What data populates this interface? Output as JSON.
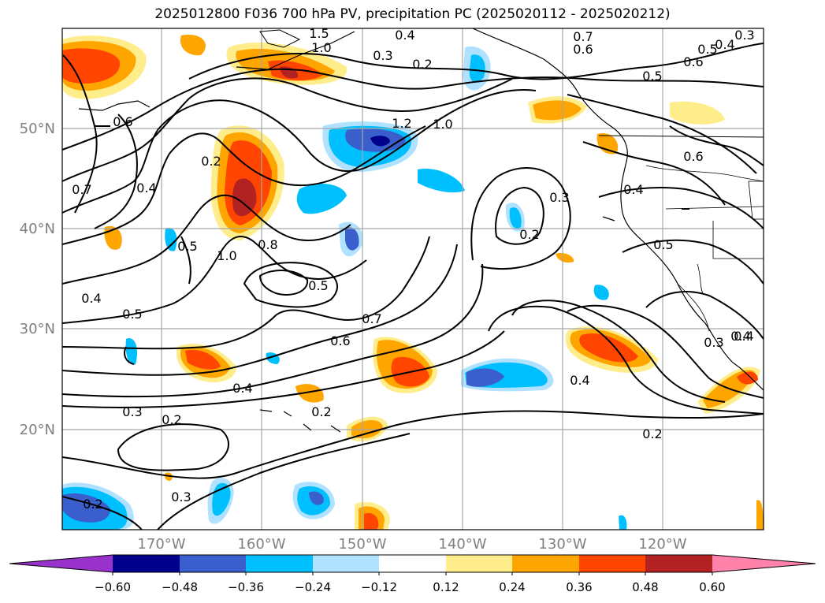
{
  "title": "2025012800 F036 700 hPa PV, precipitation PC (2025020112 - 2025020212)",
  "map": {
    "lat_labels": [
      "50°N",
      "40°N",
      "30°N",
      "20°N"
    ],
    "lon_labels": [
      "170°W",
      "160°W",
      "150°W",
      "140°W",
      "130°W",
      "120°W"
    ],
    "contour_labels": [
      "0.3",
      "0.4",
      "1.5",
      "1.0",
      "0.2",
      "0.7",
      "0.6",
      "0.3",
      "0.4",
      "0.5",
      "0.6",
      "0.5",
      "0.6",
      "0.2",
      "1.2",
      "1.0",
      "0.7",
      "0.4",
      "0.6",
      "0.5",
      "1.0",
      "0.8",
      "0.5",
      "0.4",
      "0.3",
      "0.2",
      "0.4",
      "0.5",
      "0.4",
      "0.5",
      "0.7",
      "0.6",
      "0.4",
      "0.3",
      "0.2",
      "0.2",
      "0.3",
      "0.4",
      "0.2",
      "0.2",
      "0.3",
      "0.4"
    ]
  },
  "colorbar": {
    "colors": [
      "#9932cc",
      "#00008b",
      "#3a5fcd",
      "#00bfff",
      "#b0e2ff",
      "#ffffff",
      "#ffec8b",
      "#ffa500",
      "#ff4500",
      "#b22222",
      "#ff82ab"
    ],
    "tick_labels": [
      "−0.60",
      "−0.48",
      "−0.36",
      "−0.24",
      "−0.12",
      "0.12",
      "0.24",
      "0.36",
      "0.48",
      "0.60"
    ]
  }
}
